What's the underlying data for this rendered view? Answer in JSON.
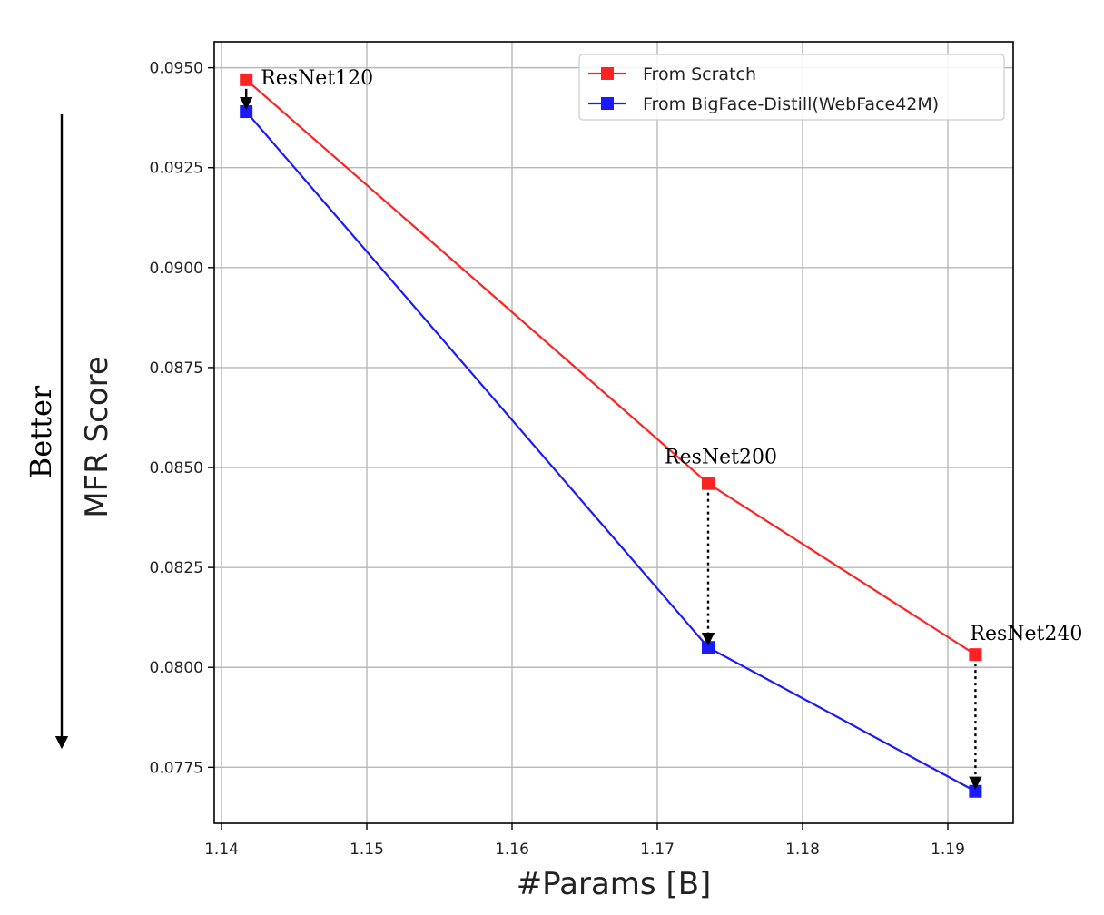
{
  "chart_data": {
    "type": "line",
    "title": "",
    "xlabel": "#Params [B]",
    "ylabel": "MFR Score",
    "side_label": "Better",
    "xlim": [
      1.1395,
      1.1945
    ],
    "ylim": [
      0.0761,
      0.09565
    ],
    "xticks": [
      1.14,
      1.15,
      1.16,
      1.17,
      1.18,
      1.19
    ],
    "xtick_labels": [
      "1.14",
      "1.15",
      "1.16",
      "1.17",
      "1.18",
      "1.19"
    ],
    "yticks": [
      0.0775,
      0.08,
      0.0825,
      0.085,
      0.0875,
      0.09,
      0.0925,
      0.095
    ],
    "ytick_labels": [
      "0.0775",
      "0.0800",
      "0.0825",
      "0.0850",
      "0.0875",
      "0.0900",
      "0.0925",
      "0.0950"
    ],
    "grid": true,
    "legend_position": "top-right",
    "series": [
      {
        "name": "From Scratch",
        "color": "#ff2222",
        "x": [
          1.1417,
          1.1735,
          1.1919
        ],
        "y": [
          0.0947,
          0.0846,
          0.08032
        ]
      },
      {
        "name": "From BigFace-Distill(WebFace42M)",
        "color": "#1a1aff",
        "x": [
          1.1417,
          1.1735,
          1.1919
        ],
        "y": [
          0.0939,
          0.0805,
          0.0769
        ]
      }
    ],
    "annotations": [
      {
        "text": "ResNet120",
        "x": 1.1417,
        "y": 0.0947
      },
      {
        "text": "ResNet200",
        "x": 1.1735,
        "y": 0.0846
      },
      {
        "text": "ResNet240",
        "x": 1.1919,
        "y": 0.08032
      }
    ]
  }
}
